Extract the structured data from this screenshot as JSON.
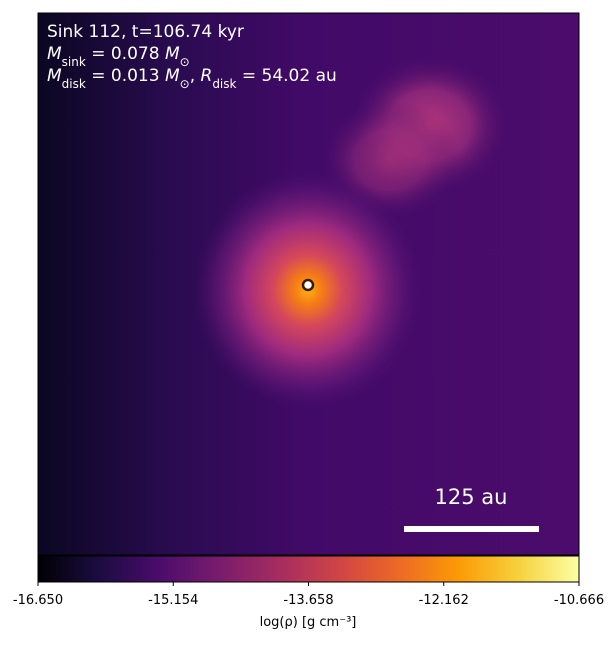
{
  "chart_data": {
    "type": "image",
    "annotations": [
      [
        {
          "text": "Sink 112, t=106.74 kyr"
        }
      ],
      [
        {
          "text": "M",
          "style": "italic"
        },
        {
          "text": "sink",
          "style": "sub"
        },
        {
          "text": " = 0.078 "
        },
        {
          "text": "M",
          "style": "italic"
        },
        {
          "text": "⊙",
          "style": "sub"
        }
      ],
      [
        {
          "text": "M",
          "style": "italic"
        },
        {
          "text": "disk",
          "style": "sub"
        },
        {
          "text": " = 0.013 "
        },
        {
          "text": "M",
          "style": "italic"
        },
        {
          "text": "⊙",
          "style": "sub"
        },
        {
          "text": ", "
        },
        {
          "text": "R",
          "style": "italic"
        },
        {
          "text": "disk",
          "style": "sub"
        },
        {
          "text": " = 54.02 au"
        }
      ]
    ],
    "scale_bar_label": "125 au",
    "colorbar": {
      "label": "log(ρ) [g cm⁻³]",
      "colormap": "inferno",
      "lim": [
        -16.65,
        -10.666
      ],
      "ticks": [
        {
          "value": -16.65,
          "label": "-16.650"
        },
        {
          "value": -15.154,
          "label": "-15.154"
        },
        {
          "value": -13.658,
          "label": "-13.658"
        },
        {
          "value": -12.162,
          "label": "-12.162"
        },
        {
          "value": -10.666,
          "label": "-10.666"
        }
      ]
    }
  }
}
